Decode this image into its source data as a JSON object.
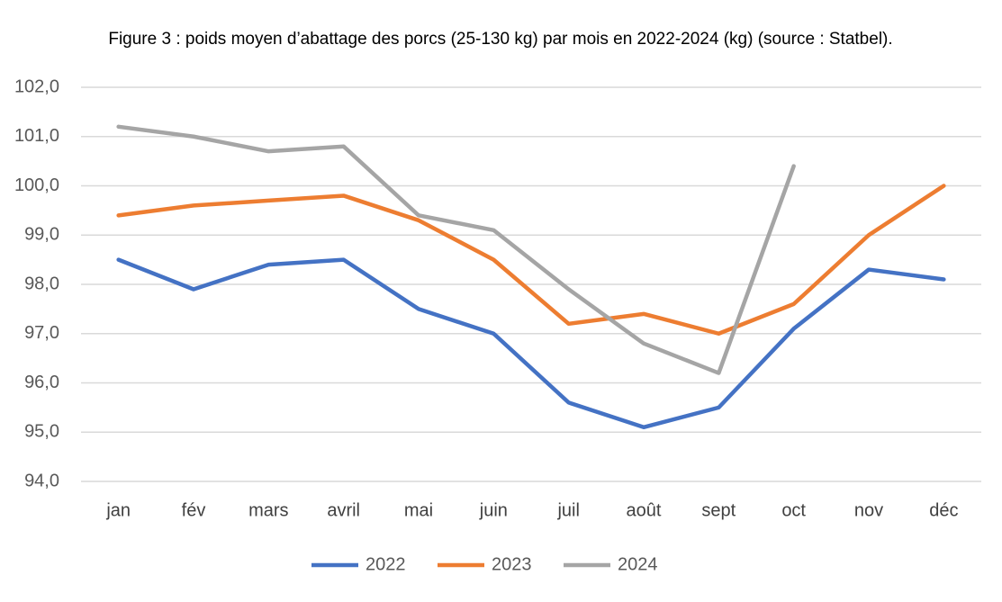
{
  "chart_data": {
    "type": "line",
    "title": "Figure 3 : poids moyen d’abattage des porcs (25-130 kg) par mois en 2022-2024 (kg) (source : Statbel).",
    "categories": [
      "jan",
      "fév",
      "mars",
      "avril",
      "mai",
      "juin",
      "juil",
      "août",
      "sept",
      "oct",
      "nov",
      "déc"
    ],
    "series": [
      {
        "name": "2022",
        "color": "#4472c4",
        "values": [
          98.5,
          97.9,
          98.4,
          98.5,
          97.5,
          97.0,
          95.6,
          95.1,
          95.5,
          97.1,
          98.3,
          98.1
        ]
      },
      {
        "name": "2023",
        "color": "#ed7d31",
        "values": [
          99.4,
          99.6,
          99.7,
          99.8,
          99.3,
          98.5,
          97.2,
          97.4,
          97.0,
          97.6,
          99.0,
          100.0
        ]
      },
      {
        "name": "2024",
        "color": "#a5a5a5",
        "values": [
          101.2,
          101.0,
          100.7,
          100.8,
          99.4,
          99.1,
          97.9,
          96.8,
          96.2,
          100.4,
          null,
          null
        ]
      }
    ],
    "ylim": [
      94,
      102
    ],
    "yticks": [
      {
        "value": 94,
        "label": "94,0"
      },
      {
        "value": 95,
        "label": "95,0"
      },
      {
        "value": 96,
        "label": "96,0"
      },
      {
        "value": 97,
        "label": "97,0"
      },
      {
        "value": 98,
        "label": "98,0"
      },
      {
        "value": 99,
        "label": "99,0"
      },
      {
        "value": 100,
        "label": "100,0"
      },
      {
        "value": 101,
        "label": "101,0"
      },
      {
        "value": 102,
        "label": "102,0"
      }
    ],
    "grid": true,
    "legend": "bottom"
  }
}
